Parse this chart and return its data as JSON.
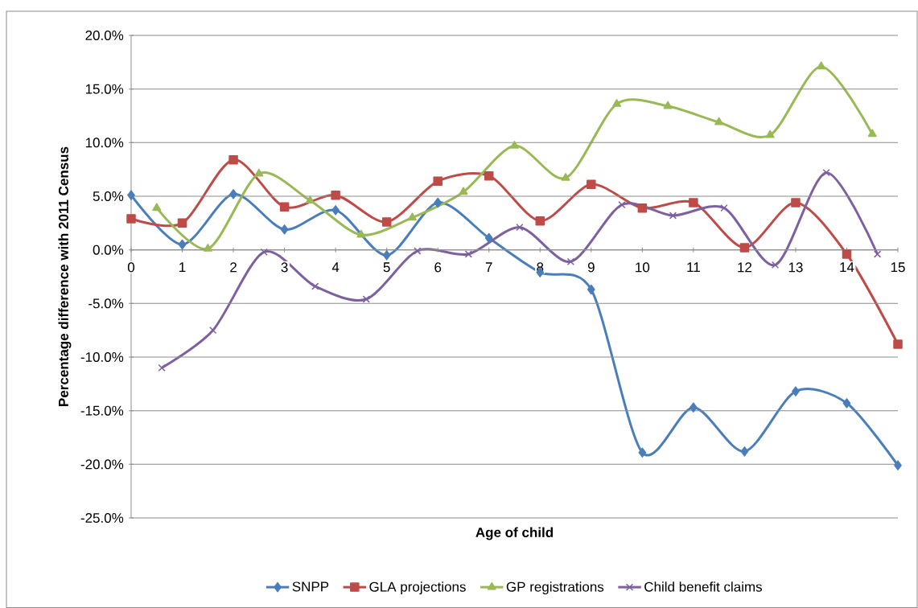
{
  "chart_data": {
    "type": "line",
    "xlabel": "Age of child",
    "ylabel": "Percentage difference with 2011 Census",
    "x": [
      0,
      1,
      2,
      3,
      4,
      5,
      6,
      7,
      8,
      9,
      10,
      11,
      12,
      13,
      14,
      15
    ],
    "xlim": [
      0,
      15
    ],
    "xticks": [
      0,
      1,
      2,
      3,
      4,
      5,
      6,
      7,
      8,
      9,
      10,
      11,
      12,
      13,
      14,
      15
    ],
    "ylim": [
      -25,
      20
    ],
    "yticks": [
      {
        "value": -25,
        "label": "-25.0%"
      },
      {
        "value": -20,
        "label": "-20.0%"
      },
      {
        "value": -15,
        "label": "-15.0%"
      },
      {
        "value": -10,
        "label": "-10.0%"
      },
      {
        "value": -5,
        "label": "-5.0%"
      },
      {
        "value": 0,
        "label": "0.0%"
      },
      {
        "value": 5,
        "label": "5.0%"
      },
      {
        "value": 10,
        "label": "10.0%"
      },
      {
        "value": 15,
        "label": "15.0%"
      },
      {
        "value": 20,
        "label": "20.0%"
      }
    ],
    "grid": "y",
    "legend": "bottom",
    "line_style": "solid",
    "series": [
      {
        "name": "SNPP",
        "color": "#4a7ebb",
        "marker": "diamond",
        "values": [
          5.1,
          0.5,
          5.2,
          1.9,
          3.7,
          -0.5,
          4.4,
          1.1,
          -2.1,
          -3.7,
          -18.9,
          -14.7,
          -18.8,
          -13.2,
          -14.3,
          -20.1
        ]
      },
      {
        "name": "GLA projections",
        "color": "#be4b48",
        "marker": "square",
        "values": [
          2.9,
          2.5,
          8.4,
          4.0,
          5.1,
          2.6,
          6.4,
          6.9,
          2.7,
          6.1,
          3.9,
          4.4,
          0.2,
          4.4,
          -0.4,
          -8.8
        ]
      },
      {
        "name": "GP registrations",
        "color": "#98b954",
        "marker": "triangle",
        "x": [
          0.5,
          1.5,
          2.5,
          3.5,
          4.5,
          5.5,
          6.5,
          7.5,
          8.5,
          9.5,
          10.5,
          11.5,
          12.5,
          13.5,
          14.5
        ],
        "values": [
          3.9,
          0.1,
          7.1,
          4.6,
          1.4,
          3.0,
          5.4,
          9.7,
          6.7,
          13.6,
          13.4,
          11.9,
          10.7,
          17.1,
          10.8
        ]
      },
      {
        "name": "Child benefit claims",
        "color": "#7d60a0",
        "marker": "cross",
        "x": [
          0.6,
          1.6,
          2.6,
          3.6,
          4.6,
          5.6,
          6.6,
          7.6,
          8.6,
          9.6,
          10.6,
          11.6,
          12.6,
          13.6,
          14.6
        ],
        "values": [
          -11.0,
          -7.5,
          -0.2,
          -3.4,
          -4.6,
          -0.1,
          -0.4,
          2.1,
          -1.1,
          4.2,
          3.2,
          3.9,
          -1.4,
          7.2,
          -0.4
        ]
      }
    ]
  }
}
